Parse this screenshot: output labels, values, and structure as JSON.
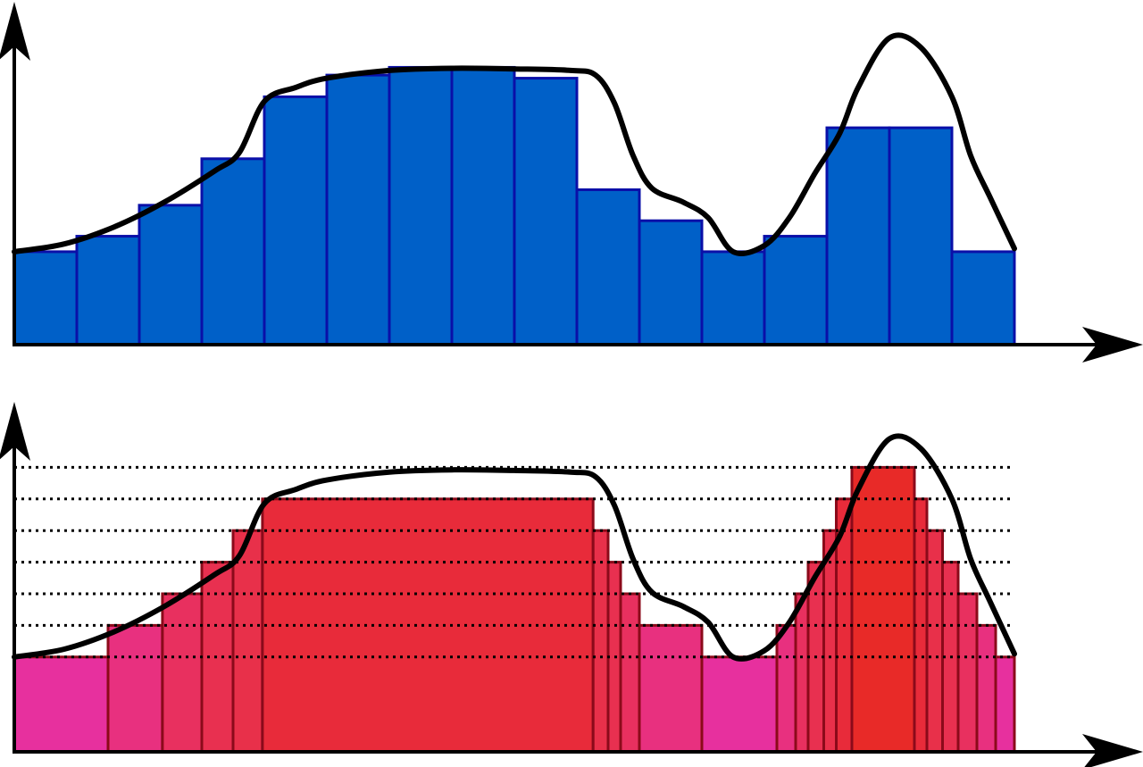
{
  "colors": {
    "background": "#ffffff",
    "axis": "#000000",
    "curve": "#000000",
    "top_bar_fill": "#0060c8",
    "top_bar_stroke": "#0a0fa8",
    "bottom_bar_stroke": "#8b0a1a",
    "gridline": "#000000"
  },
  "top_panel": {
    "bars": [
      {
        "value": 3.0
      },
      {
        "value": 3.5
      },
      {
        "value": 4.5
      },
      {
        "value": 6.0
      },
      {
        "value": 8.0
      },
      {
        "value": 8.7
      },
      {
        "value": 8.95
      },
      {
        "value": 8.95
      },
      {
        "value": 8.6
      },
      {
        "value": 5.0
      },
      {
        "value": 4.0
      },
      {
        "value": 3.0
      },
      {
        "value": 3.5
      },
      {
        "value": 7.0
      },
      {
        "value": 7.0
      },
      {
        "value": 3.0
      }
    ]
  },
  "bottom_panel": {
    "levels": [
      3,
      4,
      5,
      6,
      7,
      8,
      9
    ],
    "bars": [
      {
        "x0": 0.0,
        "x1": 1.5,
        "level": 3,
        "color": "#e7309e"
      },
      {
        "x0": 1.5,
        "x1": 2.37,
        "level": 4,
        "color": "#e8307f"
      },
      {
        "x0": 2.37,
        "x1": 3.0,
        "level": 5,
        "color": "#e8305f"
      },
      {
        "x0": 3.0,
        "x1": 3.5,
        "level": 6,
        "color": "#e83050"
      },
      {
        "x0": 3.5,
        "x1": 3.97,
        "level": 7,
        "color": "#e8304a"
      },
      {
        "x0": 3.97,
        "x1": 9.26,
        "level": 8,
        "color": "#e82b3a"
      },
      {
        "x0": 9.26,
        "x1": 9.5,
        "level": 7,
        "color": "#e8304a"
      },
      {
        "x0": 9.5,
        "x1": 9.7,
        "level": 6,
        "color": "#e83050"
      },
      {
        "x0": 9.7,
        "x1": 10.0,
        "level": 5,
        "color": "#e8305f"
      },
      {
        "x0": 10.0,
        "x1": 11.0,
        "level": 4,
        "color": "#e8307f"
      },
      {
        "x0": 11.0,
        "x1": 12.2,
        "level": 3,
        "color": "#e7309e"
      },
      {
        "x0": 12.2,
        "x1": 12.5,
        "level": 4,
        "color": "#e8307f"
      },
      {
        "x0": 12.5,
        "x1": 12.7,
        "level": 5,
        "color": "#e8305f"
      },
      {
        "x0": 12.7,
        "x1": 12.95,
        "level": 6,
        "color": "#e83050"
      },
      {
        "x0": 12.95,
        "x1": 13.15,
        "level": 7,
        "color": "#e8304a"
      },
      {
        "x0": 13.15,
        "x1": 13.4,
        "level": 8,
        "color": "#e82b3a"
      },
      {
        "x0": 13.4,
        "x1": 14.4,
        "level": 9,
        "color": "#e82a28"
      },
      {
        "x0": 14.4,
        "x1": 14.6,
        "level": 8,
        "color": "#e82b3a"
      },
      {
        "x0": 14.6,
        "x1": 14.85,
        "level": 7,
        "color": "#e8304a"
      },
      {
        "x0": 14.85,
        "x1": 15.1,
        "level": 6,
        "color": "#e83050"
      },
      {
        "x0": 15.1,
        "x1": 15.4,
        "level": 5,
        "color": "#e8305f"
      },
      {
        "x0": 15.4,
        "x1": 15.7,
        "level": 4,
        "color": "#e8307f"
      },
      {
        "x0": 15.7,
        "x1": 16.0,
        "level": 3,
        "color": "#e7309e"
      }
    ]
  },
  "curve": [
    [
      0.0,
      3.0
    ],
    [
      0.8,
      3.25
    ],
    [
      1.6,
      3.8
    ],
    [
      2.4,
      4.6
    ],
    [
      3.2,
      5.6
    ],
    [
      3.6,
      6.2
    ],
    [
      4.0,
      7.85
    ],
    [
      4.5,
      8.3
    ],
    [
      5.0,
      8.6
    ],
    [
      6.0,
      8.85
    ],
    [
      7.0,
      8.92
    ],
    [
      8.0,
      8.9
    ],
    [
      8.9,
      8.85
    ],
    [
      9.3,
      8.7
    ],
    [
      9.6,
      7.8
    ],
    [
      9.9,
      6.1
    ],
    [
      10.2,
      5.05
    ],
    [
      10.7,
      4.6
    ],
    [
      11.1,
      4.1
    ],
    [
      11.5,
      3.0
    ],
    [
      12.0,
      3.2
    ],
    [
      12.4,
      4.1
    ],
    [
      12.8,
      5.5
    ],
    [
      13.2,
      6.8
    ],
    [
      13.5,
      8.3
    ],
    [
      14.0,
      9.9
    ],
    [
      14.5,
      9.6
    ],
    [
      15.0,
      8.0
    ],
    [
      15.3,
      6.1
    ],
    [
      15.6,
      4.8
    ],
    [
      16.0,
      3.1
    ]
  ]
}
